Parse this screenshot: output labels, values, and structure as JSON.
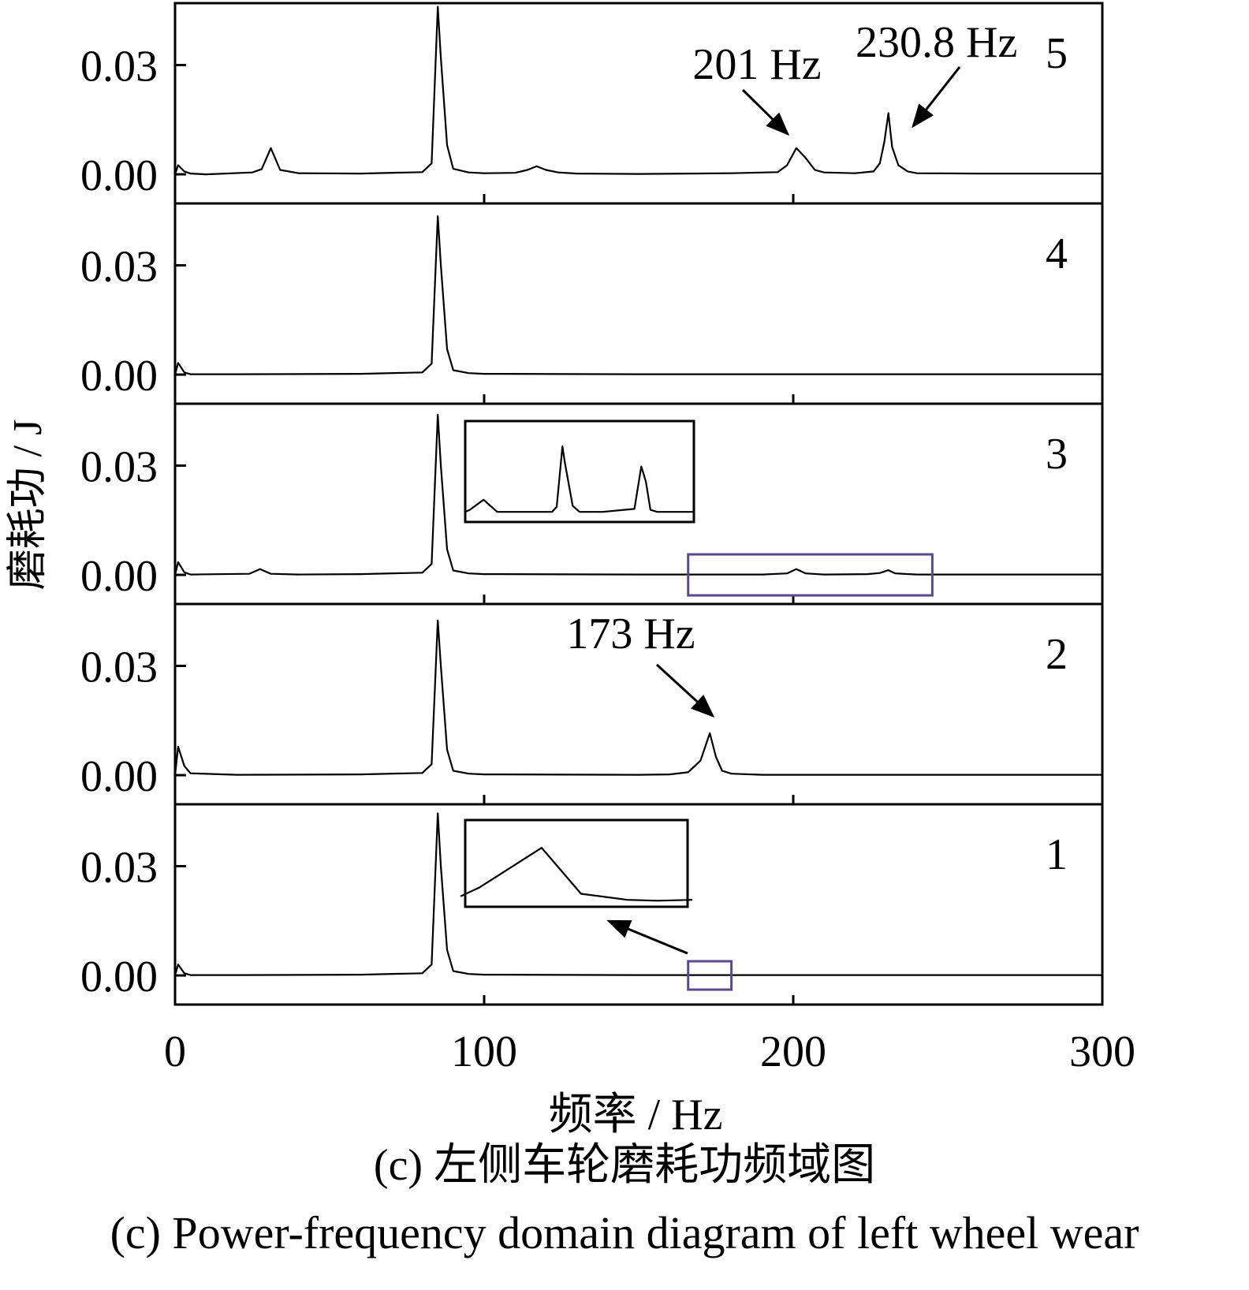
{
  "chart_data": {
    "type": "line",
    "layout": "stacked-panels",
    "xlabel": "频率 / Hz",
    "ylabel": "磨耗功 / J",
    "x_ticks": [
      "0",
      "100",
      "200",
      "300"
    ],
    "x_tick_values": [
      0,
      100,
      200,
      300
    ],
    "xlim": [
      0,
      300
    ],
    "y_ticks": [
      "0.00",
      "0.03"
    ],
    "y_tick_values": [
      0.0,
      0.03
    ],
    "ylim": [
      -0.008,
      0.047
    ],
    "line_color": "#000000",
    "inset_marker_color": "#5b4a8b",
    "panels": [
      {
        "label": "5",
        "series": [
          {
            "x": [
              0,
              1,
              3,
              5,
              10,
              25,
              28,
              31,
              34,
              40,
              60,
              80,
              83,
              85,
              86,
              88,
              90,
              95,
              100,
              110,
              114,
              117,
              120,
              124,
              130,
              150,
              180,
              195,
              198,
              201,
              204,
              207,
              210,
              220,
              226,
              228,
              229.5,
              230.8,
              232,
              234,
              237,
              240,
              260,
              300
            ],
            "y": [
              0.0,
              0.0025,
              0.0008,
              0.0002,
              0.0,
              0.0005,
              0.0014,
              0.0072,
              0.0012,
              0.0003,
              0.0002,
              0.0006,
              0.003,
              0.046,
              0.032,
              0.008,
              0.0015,
              0.0005,
              0.0003,
              0.0004,
              0.0012,
              0.0022,
              0.0012,
              0.0005,
              0.0002,
              0.0001,
              0.0003,
              0.0006,
              0.0025,
              0.0072,
              0.0045,
              0.0012,
              0.0005,
              0.0003,
              0.0008,
              0.003,
              0.009,
              0.0168,
              0.0075,
              0.0025,
              0.0008,
              0.0003,
              0.0002,
              0.0002
            ]
          }
        ],
        "annotations": [
          {
            "text": "201 Hz",
            "target_x": 201
          },
          {
            "text": "230.8 Hz",
            "target_x": 230.8
          }
        ]
      },
      {
        "label": "4",
        "series": [
          {
            "x": [
              0,
              1,
              3,
              5,
              20,
              60,
              80,
              83,
              85,
              86,
              88,
              90,
              95,
              100,
              150,
              300
            ],
            "y": [
              0.0,
              0.0032,
              0.0006,
              0.0001,
              0.0001,
              0.0002,
              0.0006,
              0.003,
              0.0435,
              0.03,
              0.007,
              0.0012,
              0.0004,
              0.0002,
              0.0001,
              0.0001
            ]
          }
        ]
      },
      {
        "label": "3",
        "series": [
          {
            "x": [
              0,
              1,
              3,
              5,
              24,
              27.5,
              31,
              40,
              60,
              80,
              83,
              85,
              86,
              88,
              90,
              95,
              100,
              150,
              190,
              198,
              201,
              204,
              210,
              224,
              228,
              230.8,
              233,
              240,
              260,
              300
            ],
            "y": [
              0.0,
              0.0035,
              0.0007,
              0.0001,
              0.0003,
              0.0016,
              0.0003,
              0.0001,
              0.0002,
              0.0006,
              0.003,
              0.044,
              0.03,
              0.007,
              0.0012,
              0.0004,
              0.0002,
              0.0001,
              0.0001,
              0.0004,
              0.0016,
              0.0004,
              0.0001,
              0.0002,
              0.0005,
              0.0013,
              0.0004,
              0.0001,
              0.0001,
              0.0001
            ]
          }
        ],
        "inset": {
          "x_range": [
            166,
            245
          ],
          "x": [
            0,
            0.02,
            0.08,
            0.14,
            0.38,
            0.4,
            0.425,
            0.435,
            0.47,
            0.5,
            0.6,
            0.74,
            0.77,
            0.79,
            0.81,
            0.84,
            0.9,
            1.0
          ],
          "y": [
            0.1,
            0.12,
            0.22,
            0.1,
            0.1,
            0.15,
            0.75,
            0.6,
            0.16,
            0.1,
            0.1,
            0.13,
            0.55,
            0.4,
            0.12,
            0.1,
            0.1,
            0.1
          ]
        }
      },
      {
        "label": "2",
        "series": [
          {
            "x": [
              0,
              1,
              3,
              5,
              20,
              60,
              80,
              83,
              85,
              86,
              88,
              90,
              95,
              100,
              150,
              160,
              166,
              170,
              173,
              175,
              177,
              180,
              190,
              300
            ],
            "y": [
              0.0,
              0.0078,
              0.0025,
              0.0005,
              0.0001,
              0.0002,
              0.0006,
              0.003,
              0.0425,
              0.03,
              0.007,
              0.0012,
              0.0004,
              0.0002,
              0.0001,
              0.0002,
              0.0008,
              0.004,
              0.0115,
              0.005,
              0.0012,
              0.0004,
              0.0001,
              0.0001
            ]
          }
        ],
        "annotations": [
          {
            "text": "173 Hz",
            "target_x": 173
          }
        ]
      },
      {
        "label": "1",
        "series": [
          {
            "x": [
              0,
              1,
              3,
              5,
              20,
              60,
              80,
              83,
              85,
              86,
              88,
              90,
              95,
              100,
              150,
              300
            ],
            "y": [
              0.0,
              0.003,
              0.0006,
              0.0001,
              0.0001,
              0.0002,
              0.0006,
              0.003,
              0.0445,
              0.03,
              0.007,
              0.0012,
              0.0004,
              0.0002,
              0.0001,
              0.0001
            ]
          }
        ],
        "inset": {
          "x_range": [
            166,
            180
          ],
          "x": [
            0,
            0.08,
            0.35,
            0.52,
            0.72,
            0.85,
            1.0
          ],
          "y": [
            0.12,
            0.22,
            0.68,
            0.15,
            0.08,
            0.07,
            0.08
          ]
        }
      }
    ],
    "caption_cn": "(c) 左侧车轮磨耗功频域图",
    "caption_en": "(c) Power-frequency domain diagram of left wheel wear"
  }
}
